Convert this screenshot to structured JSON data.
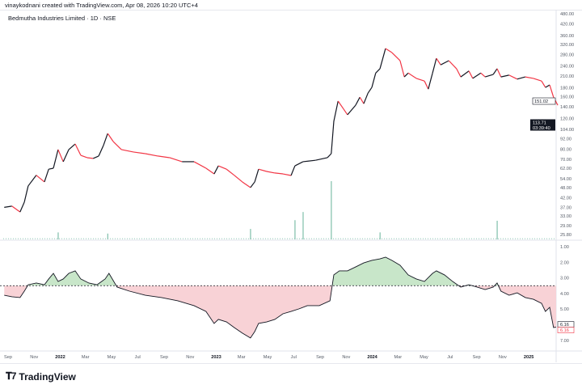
{
  "header": {
    "credit": "vinaykodnani created with TradingView.com, Apr 08, 2026 10:20 UTC+4",
    "symbol_title": "Bedmutha Industries Limited · 1D · NSE"
  },
  "footer": {
    "logo_text": "TradingView"
  },
  "colors": {
    "down": "#f23645",
    "up": "#131722",
    "volume": "#7fbfaa",
    "fill_above": "#c8e6c9",
    "fill_below": "#f8d2d6"
  },
  "chart_data": [
    {
      "type": "line",
      "pane": "price",
      "scale": "log",
      "ylim": [
        25.8,
        480
      ],
      "y_ticks": [
        "480.00",
        "420.00",
        "360.00",
        "320.00",
        "280.00",
        "240.00",
        "210.00",
        "180.00",
        "160.00",
        "140.00",
        "120.00",
        "104.00",
        "92.00",
        "80.00",
        "70.00",
        "62.00",
        "54.00",
        "48.00",
        "42.00",
        "37.00",
        "33.00",
        "29.00",
        "25.80"
      ],
      "price_labels": [
        {
          "value": "151.02",
          "style": "outline"
        },
        {
          "value": "113.71",
          "sub": "03:39:40",
          "style": "dark"
        }
      ],
      "points": [
        [
          "2021-08-23",
          37.0
        ],
        [
          "2021-09-10",
          37.6
        ],
        [
          "2021-09-29",
          34.8
        ],
        [
          "2021-10-09",
          39.6
        ],
        [
          "2021-10-18",
          49.1
        ],
        [
          "2021-11-06",
          56.6
        ],
        [
          "2021-11-25",
          51.8
        ],
        [
          "2021-12-05",
          61.3
        ],
        [
          "2021-12-16",
          62.1
        ],
        [
          "2021-12-27",
          79.5
        ],
        [
          "2022-01-08",
          67.7
        ],
        [
          "2022-01-21",
          79.5
        ],
        [
          "2022-02-05",
          85.6
        ],
        [
          "2022-02-18",
          73.7
        ],
        [
          "2022-03-05",
          71.4
        ],
        [
          "2022-03-19",
          70.7
        ],
        [
          "2022-04-01",
          73.0
        ],
        [
          "2022-04-12",
          83.9
        ],
        [
          "2022-04-22",
          98.4
        ],
        [
          "2022-05-05",
          88.4
        ],
        [
          "2022-05-24",
          79.5
        ],
        [
          "2022-06-21",
          77.0
        ],
        [
          "2022-07-19",
          75.3
        ],
        [
          "2022-08-17",
          73.0
        ],
        [
          "2022-09-14",
          71.4
        ],
        [
          "2022-10-13",
          67.7
        ],
        [
          "2022-11-10",
          67.7
        ],
        [
          "2022-12-08",
          62.1
        ],
        [
          "2022-12-27",
          57.6
        ],
        [
          "2023-01-06",
          64.1
        ],
        [
          "2023-01-25",
          61.3
        ],
        [
          "2023-02-12",
          56.6
        ],
        [
          "2023-03-03",
          51.8
        ],
        [
          "2023-03-22",
          48.1
        ],
        [
          "2023-04-01",
          51.8
        ],
        [
          "2023-04-10",
          61.3
        ],
        [
          "2023-04-29",
          59.5
        ],
        [
          "2023-05-18",
          58.3
        ],
        [
          "2023-06-06",
          57.6
        ],
        [
          "2023-06-25",
          56.4
        ],
        [
          "2023-07-04",
          64.1
        ],
        [
          "2023-07-23",
          67.7
        ],
        [
          "2023-08-21",
          69.0
        ],
        [
          "2023-09-18",
          71.4
        ],
        [
          "2023-09-27",
          75.3
        ],
        [
          "2023-10-03",
          115.6
        ],
        [
          "2023-10-13",
          151.0
        ],
        [
          "2023-10-26",
          135.8
        ],
        [
          "2023-11-04",
          126.0
        ],
        [
          "2023-11-23",
          143.0
        ],
        [
          "2023-12-03",
          159.0
        ],
        [
          "2023-12-12",
          146.0
        ],
        [
          "2023-12-22",
          168.0
        ],
        [
          "2023-12-31",
          181.0
        ],
        [
          "2024-01-09",
          219.0
        ],
        [
          "2024-01-19",
          232.0
        ],
        [
          "2024-02-01",
          303.0
        ],
        [
          "2024-02-16",
          287.0
        ],
        [
          "2024-03-06",
          258.0
        ],
        [
          "2024-03-16",
          208.0
        ],
        [
          "2024-03-25",
          219.0
        ],
        [
          "2024-04-13",
          204.0
        ],
        [
          "2024-05-02",
          197.0
        ],
        [
          "2024-05-11",
          177.0
        ],
        [
          "2024-05-21",
          219.0
        ],
        [
          "2024-05-30",
          266.0
        ],
        [
          "2024-06-09",
          244.0
        ],
        [
          "2024-06-28",
          258.0
        ],
        [
          "2024-07-16",
          232.0
        ],
        [
          "2024-07-26",
          208.0
        ],
        [
          "2024-08-14",
          225.0
        ],
        [
          "2024-08-23",
          204.0
        ],
        [
          "2024-09-11",
          219.0
        ],
        [
          "2024-09-21",
          208.0
        ],
        [
          "2024-10-10",
          215.0
        ],
        [
          "2024-10-19",
          232.0
        ],
        [
          "2024-10-28",
          208.0
        ],
        [
          "2024-11-16",
          213.0
        ],
        [
          "2024-12-05",
          202.0
        ],
        [
          "2024-12-24",
          208.0
        ],
        [
          "2025-01-12",
          204.0
        ],
        [
          "2025-01-31",
          197.0
        ],
        [
          "2025-02-09",
          181.0
        ],
        [
          "2025-02-19",
          187.0
        ],
        [
          "2025-02-28",
          159.0
        ],
        [
          "2025-03-10",
          143.0
        ]
      ],
      "volume_spikes_relative": [
        [
          "2021-12-27",
          0.12
        ],
        [
          "2022-04-22",
          0.1
        ],
        [
          "2023-03-22",
          0.18
        ],
        [
          "2023-07-04",
          0.33
        ],
        [
          "2023-07-23",
          0.47
        ],
        [
          "2023-09-27",
          1.0
        ],
        [
          "2024-01-19",
          0.12
        ],
        [
          "2024-10-19",
          0.32
        ]
      ]
    },
    {
      "type": "area",
      "pane": "indicator",
      "y_inverted": true,
      "ylim": [
        1,
        7
      ],
      "baseline": 3.5,
      "y_ticks": [
        "1.00",
        "2.00",
        "3.00",
        "4.00",
        "5.00",
        "7.00"
      ],
      "value_labels": [
        {
          "value": "6.16",
          "style": "outline-dark"
        },
        {
          "value": "6.16",
          "style": "outline-red"
        }
      ],
      "points": [
        [
          "2021-08-23",
          4.11
        ],
        [
          "2021-09-10",
          4.21
        ],
        [
          "2021-09-29",
          4.26
        ],
        [
          "2021-10-09",
          3.85
        ],
        [
          "2021-10-18",
          3.44
        ],
        [
          "2021-11-06",
          3.33
        ],
        [
          "2021-11-25",
          3.44
        ],
        [
          "2021-12-05",
          3.07
        ],
        [
          "2021-12-16",
          2.71
        ],
        [
          "2021-12-27",
          3.23
        ],
        [
          "2022-01-08",
          3.07
        ],
        [
          "2022-01-21",
          2.71
        ],
        [
          "2022-02-05",
          2.55
        ],
        [
          "2022-02-18",
          3.07
        ],
        [
          "2022-03-09",
          3.33
        ],
        [
          "2022-03-28",
          3.44
        ],
        [
          "2022-04-16",
          3.07
        ],
        [
          "2022-04-25",
          2.71
        ],
        [
          "2022-05-14",
          3.59
        ],
        [
          "2022-06-12",
          3.85
        ],
        [
          "2022-07-19",
          4.11
        ],
        [
          "2022-08-26",
          4.26
        ],
        [
          "2022-10-03",
          4.47
        ],
        [
          "2022-11-10",
          4.78
        ],
        [
          "2022-12-08",
          5.15
        ],
        [
          "2022-12-27",
          5.92
        ],
        [
          "2023-01-06",
          5.66
        ],
        [
          "2023-01-25",
          5.82
        ],
        [
          "2023-02-12",
          6.18
        ],
        [
          "2023-03-03",
          6.54
        ],
        [
          "2023-03-22",
          6.85
        ],
        [
          "2023-04-01",
          6.44
        ],
        [
          "2023-04-10",
          5.92
        ],
        [
          "2023-04-29",
          5.82
        ],
        [
          "2023-05-18",
          5.66
        ],
        [
          "2023-06-06",
          5.3
        ],
        [
          "2023-06-25",
          5.15
        ],
        [
          "2023-07-13",
          4.99
        ],
        [
          "2023-08-02",
          4.78
        ],
        [
          "2023-08-30",
          4.78
        ],
        [
          "2023-09-24",
          4.47
        ],
        [
          "2023-10-03",
          2.81
        ],
        [
          "2023-10-16",
          2.55
        ],
        [
          "2023-11-04",
          2.55
        ],
        [
          "2023-11-23",
          2.3
        ],
        [
          "2023-12-12",
          2.04
        ],
        [
          "2023-12-31",
          1.88
        ],
        [
          "2024-01-19",
          1.78
        ],
        [
          "2024-02-01",
          1.67
        ],
        [
          "2024-02-16",
          1.88
        ],
        [
          "2024-03-06",
          2.19
        ],
        [
          "2024-03-25",
          2.81
        ],
        [
          "2024-04-13",
          3.07
        ],
        [
          "2024-05-02",
          3.23
        ],
        [
          "2024-05-21",
          2.71
        ],
        [
          "2024-05-30",
          2.55
        ],
        [
          "2024-06-18",
          2.81
        ],
        [
          "2024-07-07",
          3.23
        ],
        [
          "2024-07-26",
          3.59
        ],
        [
          "2024-08-14",
          3.44
        ],
        [
          "2024-09-02",
          3.59
        ],
        [
          "2024-09-21",
          3.75
        ],
        [
          "2024-10-10",
          3.59
        ],
        [
          "2024-10-19",
          3.33
        ],
        [
          "2024-10-28",
          3.85
        ],
        [
          "2024-11-16",
          4.11
        ],
        [
          "2024-12-05",
          3.96
        ],
        [
          "2024-12-24",
          4.26
        ],
        [
          "2025-01-12",
          4.37
        ],
        [
          "2025-01-31",
          4.63
        ],
        [
          "2025-02-09",
          5.15
        ],
        [
          "2025-02-19",
          4.89
        ],
        [
          "2025-02-28",
          6.18
        ],
        [
          "2025-03-06",
          6.16
        ]
      ]
    }
  ],
  "time_axis": [
    [
      "2021-09-01",
      "Sep"
    ],
    [
      "2021-11-01",
      "Nov"
    ],
    [
      "2022-01-01",
      "2022"
    ],
    [
      "2022-03-01",
      "Mar"
    ],
    [
      "2022-05-01",
      "May"
    ],
    [
      "2022-07-01",
      "Jul"
    ],
    [
      "2022-09-01",
      "Sep"
    ],
    [
      "2022-11-01",
      "Nov"
    ],
    [
      "2023-01-01",
      "2023"
    ],
    [
      "2023-03-01",
      "Mar"
    ],
    [
      "2023-05-01",
      "May"
    ],
    [
      "2023-07-01",
      "Jul"
    ],
    [
      "2023-09-01",
      "Sep"
    ],
    [
      "2023-11-01",
      "Nov"
    ],
    [
      "2024-01-01",
      "2024"
    ],
    [
      "2024-03-01",
      "Mar"
    ],
    [
      "2024-05-01",
      "May"
    ],
    [
      "2024-07-01",
      "Jul"
    ],
    [
      "2024-09-01",
      "Sep"
    ],
    [
      "2024-11-01",
      "Nov"
    ],
    [
      "2025-01-01",
      "2025"
    ]
  ]
}
